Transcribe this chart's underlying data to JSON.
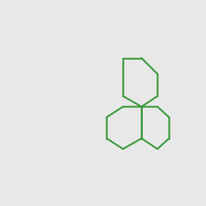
{
  "bg_color": "#e8e8e8",
  "bond_color": "#3a9a3a",
  "o_color": "#dd0000",
  "cl_color": "#3a9a3a",
  "lw": 1.8,
  "lw_double": 1.8,
  "figsize": [
    3.0,
    3.0
  ],
  "dpi": 100
}
